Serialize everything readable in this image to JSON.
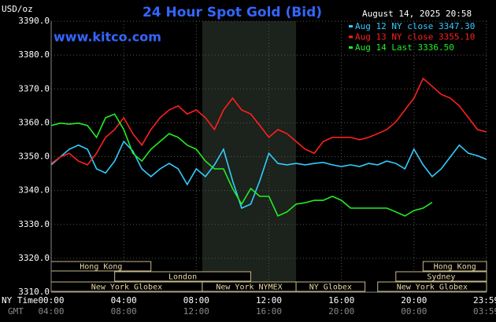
{
  "chart_data": {
    "type": "line",
    "title": "24 Hour Spot Gold (Bid)",
    "y_label": "USD/oz",
    "timestamp": "August 14, 2025 20:58",
    "site": "www.kitco.com",
    "x_label": "NY Time",
    "x2_label": "GMT",
    "x": [
      0,
      0.5,
      1,
      1.5,
      2,
      2.5,
      3,
      3.5,
      4,
      4.5,
      5,
      5.5,
      6,
      6.5,
      7,
      7.5,
      8,
      8.5,
      9,
      9.5,
      10,
      10.5,
      11,
      11.5,
      12,
      12.5,
      13,
      13.5,
      14,
      14.5,
      15,
      15.5,
      16,
      16.5,
      17,
      17.5,
      18,
      18.5,
      19,
      19.5,
      20,
      20.5,
      21,
      21.5,
      22,
      22.5,
      23,
      23.5,
      24
    ],
    "series": [
      {
        "name": "Aug 12 NY close 3347.30",
        "color": "#33ccff",
        "values": [
          3347.6,
          3349.9,
          3352.2,
          3353.4,
          3352.2,
          3346.4,
          3345.2,
          3348.7,
          3354.5,
          3351.7,
          3346.4,
          3344.1,
          3346.4,
          3348.0,
          3346.4,
          3341.8,
          3346.4,
          3344.1,
          3347.6,
          3352.2,
          3342.9,
          3334.8,
          3336.0,
          3342.9,
          3351.0,
          3348.0,
          3347.6,
          3348.0,
          3347.6,
          3348.0,
          3348.3,
          3347.6,
          3347.1,
          3347.6,
          3347.1,
          3348.0,
          3347.6,
          3348.7,
          3348.0,
          3346.4,
          3352.2,
          3347.6,
          3344.1,
          3346.4,
          3349.9,
          3353.4,
          3351.0,
          3350.3,
          3349.2
        ]
      },
      {
        "name": "Aug 13 NY close 3355.10",
        "color": "#ff2020",
        "values": [
          3348.0,
          3349.9,
          3351.0,
          3348.7,
          3347.6,
          3351.0,
          3355.7,
          3358.0,
          3361.5,
          3356.8,
          3353.4,
          3358.0,
          3361.5,
          3363.8,
          3365.0,
          3362.6,
          3363.8,
          3361.5,
          3358.0,
          3363.8,
          3367.3,
          3363.8,
          3362.6,
          3359.2,
          3355.7,
          3358.0,
          3356.8,
          3354.5,
          3352.2,
          3351.0,
          3354.5,
          3355.7,
          3355.7,
          3355.7,
          3355.0,
          3355.7,
          3356.8,
          3358.0,
          3360.3,
          3363.8,
          3367.3,
          3373.1,
          3370.8,
          3368.4,
          3367.3,
          3365.0,
          3361.5,
          3358.0,
          3357.3
        ]
      },
      {
        "name": "Aug 14 Last 3336.50",
        "color": "#22ee22",
        "values": [
          3359.2,
          3359.9,
          3359.6,
          3359.9,
          3359.2,
          3355.7,
          3361.5,
          3362.6,
          3358.0,
          3351.0,
          3348.7,
          3352.2,
          3354.5,
          3356.8,
          3355.7,
          3353.4,
          3352.2,
          3348.7,
          3346.4,
          3346.4,
          3340.6,
          3336.0,
          3340.6,
          3338.3,
          3338.3,
          3332.5,
          3333.7,
          3336.0,
          3336.4,
          3337.1,
          3337.1,
          3338.3,
          3337.1,
          3334.8,
          3334.8,
          3334.8,
          3334.8,
          3334.8,
          3333.7,
          3332.5,
          3334.1,
          3334.8,
          3336.5,
          null,
          null,
          null,
          null,
          null,
          null
        ]
      }
    ],
    "xlim": [
      0,
      24
    ],
    "xticks": [
      {
        "value": 0,
        "label": "00:00"
      },
      {
        "value": 4,
        "label": "04:00"
      },
      {
        "value": 8,
        "label": "08:00"
      },
      {
        "value": 12,
        "label": "12:00"
      },
      {
        "value": 16,
        "label": "16:00"
      },
      {
        "value": 20,
        "label": "20:00"
      },
      {
        "value": 23.98,
        "label": "23:59"
      }
    ],
    "x2ticks": [
      {
        "value": 0,
        "label": "04:00"
      },
      {
        "value": 4,
        "label": "08:00"
      },
      {
        "value": 8,
        "label": "12:00"
      },
      {
        "value": 12,
        "label": "16:00"
      },
      {
        "value": 16,
        "label": "20:00"
      },
      {
        "value": 20,
        "label": "00:00"
      },
      {
        "value": 23.98,
        "label": "03:59"
      }
    ],
    "ylim": [
      3310,
      3390
    ],
    "yticks": [
      {
        "value": 3310,
        "label": "3310.0"
      },
      {
        "value": 3320,
        "label": "3320.0"
      },
      {
        "value": 3330,
        "label": "3330.0"
      },
      {
        "value": 3340,
        "label": "3340.0"
      },
      {
        "value": 3350,
        "label": "3350.0"
      },
      {
        "value": 3360,
        "label": "3360.0"
      },
      {
        "value": 3370,
        "label": "3370.0"
      },
      {
        "value": 3380,
        "label": "3380.0"
      },
      {
        "value": 3390,
        "label": "3390.0"
      }
    ],
    "grid": true,
    "highlight": [
      8.33,
      13.5
    ],
    "sessions": [
      {
        "name": "Hong Kong",
        "start": 0,
        "end": 5.5,
        "row": 0
      },
      {
        "name": "London",
        "start": 3.5,
        "end": 11,
        "row": 1
      },
      {
        "name": "New York Globex",
        "start": 0,
        "end": 8.33,
        "row": 2
      },
      {
        "name": "New York NYMEX",
        "start": 8.33,
        "end": 13.5,
        "row": 2
      },
      {
        "name": "NY Globex",
        "start": 13.5,
        "end": 17.3,
        "row": 2
      },
      {
        "name": "Hong Kong",
        "start": 20.5,
        "end": 24,
        "row": 0
      },
      {
        "name": "Sydney",
        "start": 19,
        "end": 24,
        "row": 1
      },
      {
        "name": "New York Globex",
        "start": 18,
        "end": 24,
        "row": 2
      }
    ]
  }
}
